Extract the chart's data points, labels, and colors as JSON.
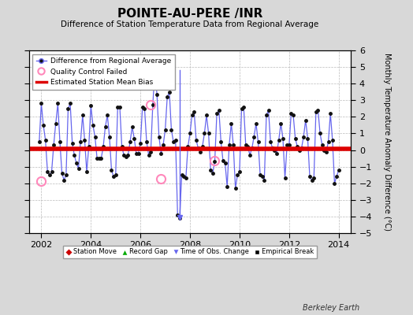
{
  "title": "POINTE-AU-PERE /INR",
  "subtitle": "Difference of Station Temperature Data from Regional Average",
  "ylabel": "Monthly Temperature Anomaly Difference (°C)",
  "xlabel_years": [
    2002,
    2004,
    2006,
    2008,
    2010,
    2012,
    2014
  ],
  "ylim": [
    -5,
    6
  ],
  "yticks": [
    -5,
    -4,
    -3,
    -2,
    -1,
    0,
    1,
    2,
    3,
    4,
    5,
    6
  ],
  "xlim_start": 2001.5,
  "xlim_end": 2014.5,
  "mean_bias": 0.05,
  "bias_color": "#dd0000",
  "line_color": "#6666ee",
  "dot_color": "#111111",
  "background_color": "#d8d8d8",
  "plot_bg_color": "#ffffff",
  "grid_color": "#bbbbbb",
  "watermark": "Berkeley Earth",
  "time_of_obs_x": 2007.58,
  "time_of_obs_y_top": 4.8,
  "time_of_obs_y_bottom": -4.05,
  "qc_failed_points": [
    [
      2002.0,
      -1.85
    ],
    [
      2006.42,
      2.75
    ],
    [
      2006.83,
      -1.75
    ],
    [
      2009.0,
      -0.65
    ]
  ],
  "data_x": [
    2001.917,
    2002.0,
    2002.083,
    2002.167,
    2002.25,
    2002.333,
    2002.417,
    2002.5,
    2002.583,
    2002.667,
    2002.75,
    2002.833,
    2002.917,
    2003.0,
    2003.083,
    2003.167,
    2003.25,
    2003.333,
    2003.417,
    2003.5,
    2003.583,
    2003.667,
    2003.75,
    2003.833,
    2003.917,
    2004.0,
    2004.083,
    2004.167,
    2004.25,
    2004.333,
    2004.417,
    2004.5,
    2004.583,
    2004.667,
    2004.75,
    2004.833,
    2004.917,
    2005.0,
    2005.083,
    2005.167,
    2005.25,
    2005.333,
    2005.417,
    2005.5,
    2005.583,
    2005.667,
    2005.75,
    2005.833,
    2005.917,
    2006.0,
    2006.083,
    2006.167,
    2006.25,
    2006.333,
    2006.417,
    2006.5,
    2006.583,
    2006.667,
    2006.75,
    2006.833,
    2006.917,
    2007.0,
    2007.083,
    2007.167,
    2007.25,
    2007.333,
    2007.417,
    2007.5,
    2007.583,
    2007.667,
    2007.75,
    2007.833,
    2007.917,
    2008.0,
    2008.083,
    2008.167,
    2008.25,
    2008.333,
    2008.417,
    2008.5,
    2008.583,
    2008.667,
    2008.75,
    2008.833,
    2008.917,
    2009.0,
    2009.083,
    2009.167,
    2009.25,
    2009.333,
    2009.417,
    2009.5,
    2009.583,
    2009.667,
    2009.75,
    2009.833,
    2009.917,
    2010.0,
    2010.083,
    2010.167,
    2010.25,
    2010.333,
    2010.417,
    2010.5,
    2010.583,
    2010.667,
    2010.75,
    2010.833,
    2010.917,
    2011.0,
    2011.083,
    2011.167,
    2011.25,
    2011.333,
    2011.417,
    2011.5,
    2011.583,
    2011.667,
    2011.75,
    2011.833,
    2011.917,
    2012.0,
    2012.083,
    2012.167,
    2012.25,
    2012.333,
    2012.417,
    2012.5,
    2012.583,
    2012.667,
    2012.75,
    2012.833,
    2012.917,
    2013.0,
    2013.083,
    2013.167,
    2013.25,
    2013.333,
    2013.417,
    2013.5,
    2013.583,
    2013.667,
    2013.75,
    2013.833,
    2013.917,
    2014.0
  ],
  "data_y": [
    0.5,
    2.8,
    1.5,
    0.6,
    -1.3,
    -1.5,
    -1.3,
    0.3,
    1.6,
    2.8,
    0.5,
    -1.4,
    -1.8,
    -1.5,
    2.5,
    2.8,
    0.4,
    -0.3,
    -0.8,
    -1.1,
    0.5,
    2.1,
    0.6,
    -1.3,
    0.2,
    2.7,
    1.5,
    0.8,
    -0.5,
    -0.5,
    -0.5,
    0.2,
    1.4,
    2.1,
    0.8,
    -1.2,
    -1.6,
    -1.5,
    2.6,
    2.6,
    0.2,
    -0.3,
    -0.4,
    -0.3,
    0.5,
    1.4,
    0.7,
    -0.2,
    -0.2,
    0.4,
    2.6,
    2.5,
    0.5,
    -0.3,
    -0.1,
    2.75,
    4.8,
    3.35,
    0.8,
    -0.2,
    0.3,
    1.2,
    3.2,
    3.5,
    1.2,
    0.5,
    0.6,
    -3.9,
    -4.1,
    -1.5,
    -1.6,
    -1.7,
    0.2,
    1.0,
    2.1,
    2.3,
    0.6,
    0.1,
    -0.1,
    0.2,
    1.0,
    2.1,
    1.0,
    -1.2,
    -1.4,
    -0.7,
    2.2,
    2.4,
    0.5,
    -0.65,
    -0.8,
    -2.2,
    0.3,
    1.6,
    0.3,
    -2.3,
    -1.5,
    -1.3,
    2.5,
    2.6,
    0.3,
    0.2,
    -0.3,
    0.1,
    0.8,
    1.6,
    0.5,
    -1.5,
    -1.6,
    -1.8,
    2.1,
    2.4,
    0.5,
    0.1,
    0.0,
    -0.2,
    0.6,
    1.6,
    0.7,
    -1.7,
    0.3,
    0.3,
    2.2,
    2.1,
    0.7,
    0.2,
    0.0,
    0.1,
    0.8,
    1.8,
    0.7,
    -1.6,
    -1.8,
    -1.7,
    2.3,
    2.4,
    1.0,
    0.3,
    0.0,
    -0.1,
    0.5,
    2.2,
    0.6,
    -2.0,
    -1.6,
    -1.2
  ]
}
